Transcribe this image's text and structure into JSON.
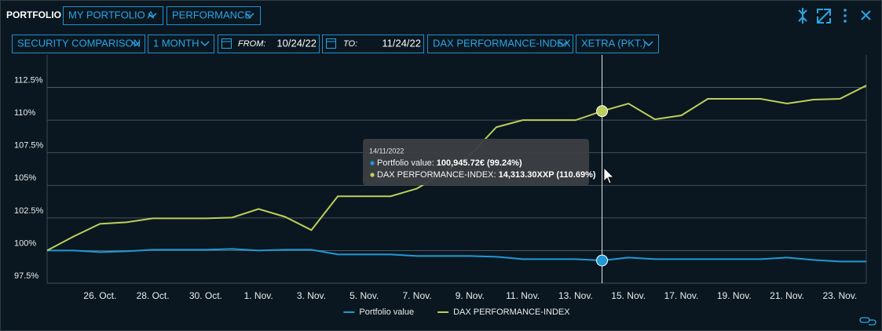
{
  "header": {
    "title": "PORTFOLIO",
    "dropdowns": [
      "MY PORTFOLIO A",
      "PERFORMANCE"
    ]
  },
  "toolbar": {
    "comparison": "SECURITY COMPARISON",
    "period": "1 MONTH",
    "from_label": "FROM:",
    "from": "10/24/22",
    "to_label": "TO:",
    "to": "11/24/22",
    "index": "DAX PERFORMANCE-INDEX",
    "exchange": "XETRA (PKT.)"
  },
  "chart_data": {
    "type": "line",
    "categories": [
      null,
      null,
      "26. Oct.",
      null,
      "28. Oct.",
      null,
      "30. Oct.",
      null,
      "1. Nov.",
      null,
      "3. Nov.",
      null,
      "5. Nov.",
      null,
      "7. Nov.",
      null,
      "9. Nov.",
      null,
      "11. Nov.",
      null,
      "13. Nov.",
      null,
      "15. Nov.",
      null,
      "17. Nov.",
      null,
      "19. Nov.",
      null,
      "21. Nov.",
      null,
      "23. Nov.",
      null
    ],
    "series": [
      {
        "name": "Portfolio value",
        "color": "#1e9ad8",
        "values": [
          100,
          100,
          99.88,
          99.94,
          100.06,
          100.06,
          100.06,
          100.12,
          100,
          100.06,
          100.06,
          99.7,
          99.7,
          99.7,
          99.58,
          99.58,
          99.58,
          99.52,
          99.34,
          99.34,
          99.34,
          99.24,
          99.46,
          99.34,
          99.34,
          99.34,
          99.34,
          99.34,
          99.46,
          99.28,
          99.16,
          99.16
        ]
      },
      {
        "name": "DAX PERFORMANCE-INDEX",
        "color": "#bccf5c",
        "values": [
          100,
          101.08,
          102.05,
          102.17,
          102.47,
          102.47,
          102.47,
          102.53,
          103.19,
          102.59,
          101.57,
          104.16,
          104.16,
          104.16,
          104.76,
          105.96,
          107.3,
          109.46,
          110,
          110,
          110,
          110.69,
          111.27,
          110.06,
          110.36,
          111.63,
          111.63,
          111.63,
          111.27,
          111.57,
          111.63,
          112.65
        ]
      }
    ],
    "ylim": [
      97.5,
      115
    ],
    "yticks": [
      {
        "value": 97.5,
        "label": "97.5%"
      },
      {
        "value": 100,
        "label": "100%"
      },
      {
        "value": 102.5,
        "label": "102.5%"
      },
      {
        "value": 105,
        "label": "105%"
      },
      {
        "value": 107.5,
        "label": "107.5%"
      },
      {
        "value": 110,
        "label": "110%"
      },
      {
        "value": 112.5,
        "label": "112.5%"
      }
    ],
    "grid": true,
    "legend": "bottom",
    "crosshair_index": 21
  },
  "tooltip": {
    "date": "14/11/2022",
    "lines": [
      {
        "label": "Portfolio value:",
        "value": "100,945.72€ (99.24%)"
      },
      {
        "label": "DAX PERFORMANCE-INDEX:",
        "value": "14,313.30XXP (110.69%)"
      }
    ]
  }
}
